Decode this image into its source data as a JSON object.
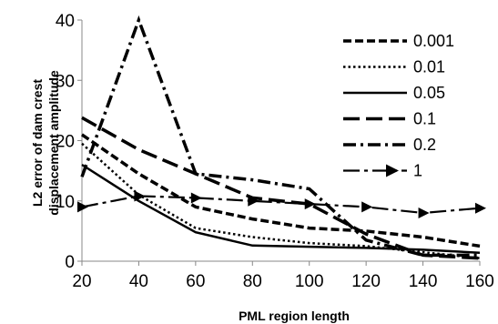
{
  "chart_data": {
    "type": "line",
    "title": "",
    "xlabel": "PML region length",
    "ylabel_lines": [
      "L2  error of dam crest",
      "displacement amplitude"
    ],
    "x": [
      20,
      40,
      60,
      80,
      100,
      120,
      140,
      160
    ],
    "xlim": [
      20,
      160
    ],
    "ylim": [
      0,
      40
    ],
    "xticks": [
      "20",
      "40",
      "60",
      "80",
      "100",
      "120",
      "140",
      "160"
    ],
    "yticks": [
      "0",
      "10",
      "20",
      "30",
      "40"
    ],
    "grid": false,
    "legend_position": "top-right",
    "series": [
      {
        "name": "0.001",
        "values": [
          21.0,
          14.5,
          9.0,
          7.0,
          5.5,
          5.0,
          4.0,
          2.5
        ],
        "style": "short-dash"
      },
      {
        "name": "0.01",
        "values": [
          19.5,
          11.0,
          5.5,
          4.0,
          3.0,
          2.5,
          1.5,
          0.5
        ],
        "style": "dotted"
      },
      {
        "name": "0.05",
        "values": [
          16.0,
          10.0,
          4.8,
          2.6,
          2.4,
          2.2,
          1.9,
          1.4
        ],
        "style": "solid"
      },
      {
        "name": "0.1",
        "values": [
          23.8,
          18.5,
          14.5,
          10.5,
          9.5,
          4.5,
          1.0,
          0.5
        ],
        "style": "long-dash"
      },
      {
        "name": "0.2",
        "values": [
          14.0,
          40.0,
          14.5,
          13.5,
          12.0,
          3.5,
          1.0,
          1.0
        ],
        "style": "dash-dot"
      },
      {
        "name": "1",
        "values": [
          9.0,
          10.8,
          10.5,
          10.0,
          9.5,
          9.0,
          8.0,
          8.8
        ],
        "style": "dash-dot-arrow"
      }
    ]
  }
}
